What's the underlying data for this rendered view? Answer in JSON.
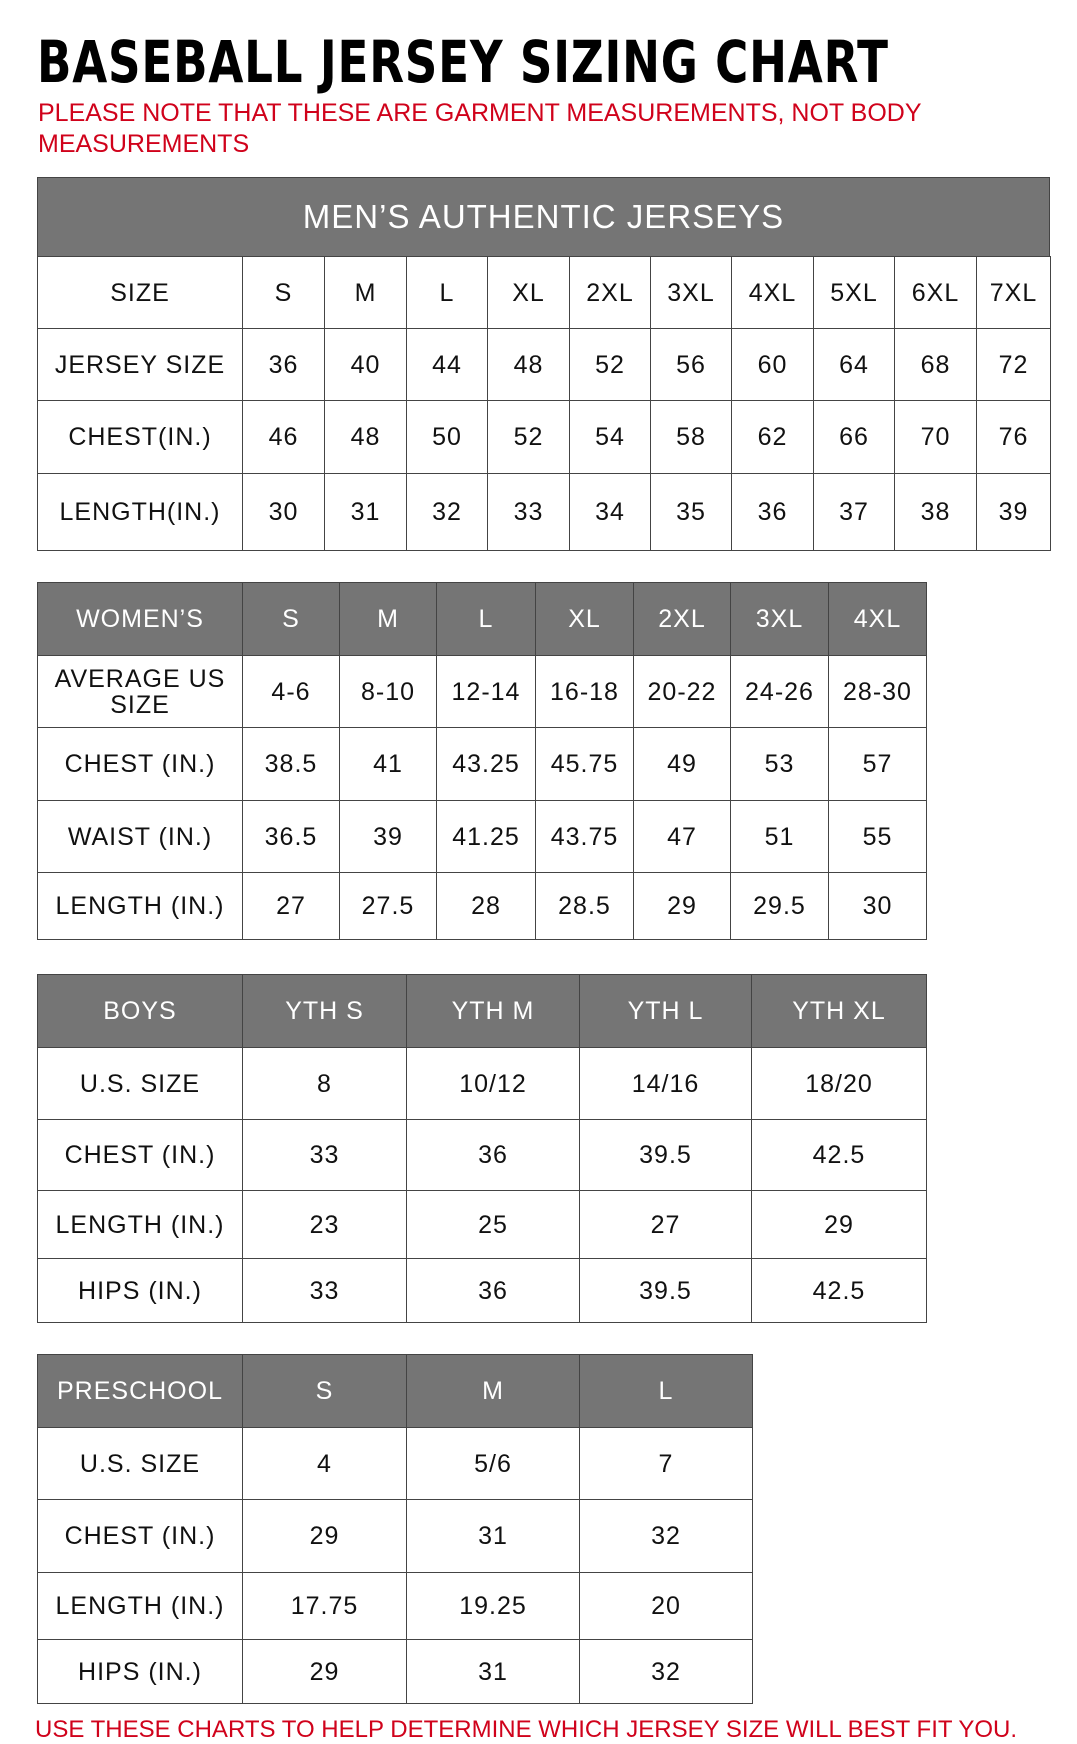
{
  "title": "BASEBALL JERSEY SIZING CHART",
  "note": "PLEASE NOTE THAT THESE ARE GARMENT MEASUREMENTS, NOT BODY MEASUREMENTS",
  "footer": "USE THESE CHARTS TO HELP DETERMINE WHICH JERSEY SIZE WILL BEST FIT YOU.",
  "colors": {
    "header_gray": "#757575",
    "note_red": "#d0021b"
  },
  "tables": [
    {
      "id": "mens",
      "title": "MEN’S AUTHENTIC JERSEYS",
      "header_gray_row": false,
      "rows": [
        [
          "SIZE",
          "S",
          "M",
          "L",
          "XL",
          "2XL",
          "3XL",
          "4XL",
          "5XL",
          "6XL",
          "7XL"
        ],
        [
          "JERSEY SIZE",
          "36",
          "40",
          "44",
          "48",
          "52",
          "56",
          "60",
          "64",
          "68",
          "72"
        ],
        [
          "CHEST(IN.)",
          "46",
          "48",
          "50",
          "52",
          "54",
          "58",
          "62",
          "66",
          "70",
          "76"
        ],
        [
          "LENGTH(IN.)",
          "30",
          "31",
          "32",
          "33",
          "34",
          "35",
          "36",
          "37",
          "38",
          "39"
        ]
      ]
    },
    {
      "id": "womens",
      "header_gray_row": true,
      "rows": [
        [
          "WOMEN’S",
          "S",
          "M",
          "L",
          "XL",
          "2XL",
          "3XL",
          "4XL"
        ],
        [
          "AVERAGE US SIZE",
          "4-6",
          "8-10",
          "12-14",
          "16-18",
          "20-22",
          "24-26",
          "28-30"
        ],
        [
          "CHEST (IN.)",
          "38.5",
          "41",
          "43.25",
          "45.75",
          "49",
          "53",
          "57"
        ],
        [
          "WAIST (IN.)",
          "36.5",
          "39",
          "41.25",
          "43.75",
          "47",
          "51",
          "55"
        ],
        [
          "LENGTH (IN.)",
          "27",
          "27.5",
          "28",
          "28.5",
          "29",
          "29.5",
          "30"
        ]
      ]
    },
    {
      "id": "boys",
      "header_gray_row": true,
      "rows": [
        [
          "BOYS",
          "YTH S",
          "YTH M",
          "YTH L",
          "YTH XL"
        ],
        [
          "U.S. SIZE",
          "8",
          "10/12",
          "14/16",
          "18/20"
        ],
        [
          "CHEST (IN.)",
          "33",
          "36",
          "39.5",
          "42.5"
        ],
        [
          "LENGTH (IN.)",
          "23",
          "25",
          "27",
          "29"
        ],
        [
          "HIPS (IN.)",
          "33",
          "36",
          "39.5",
          "42.5"
        ]
      ]
    },
    {
      "id": "preschool",
      "header_gray_row": true,
      "rows": [
        [
          "PRESCHOOL",
          "S",
          "M",
          "L"
        ],
        [
          "U.S. SIZE",
          "4",
          "5/6",
          "7"
        ],
        [
          "CHEST (IN.)",
          "29",
          "31",
          "32"
        ],
        [
          "LENGTH (IN.)",
          "17.75",
          "19.25",
          "20"
        ],
        [
          "HIPS (IN.)",
          "29",
          "31",
          "32"
        ]
      ]
    }
  ]
}
